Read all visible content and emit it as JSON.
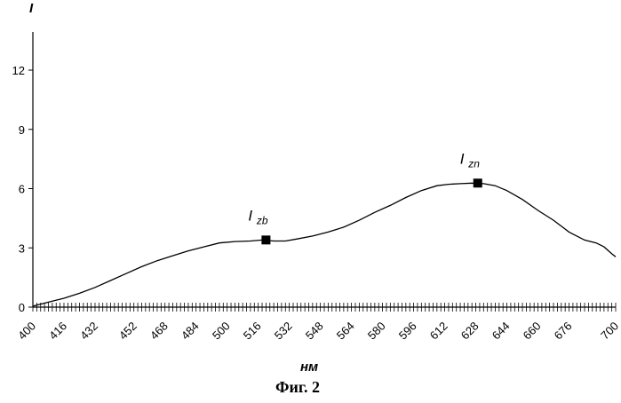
{
  "chart_data": {
    "type": "line",
    "ylabel": "I",
    "xlabel": "нм",
    "caption": "Фиг. 2",
    "ylim": [
      0,
      14
    ],
    "y_ticks": [
      0,
      3,
      6,
      9,
      12
    ],
    "xlim": [
      400,
      700
    ],
    "x_tick_step": 2,
    "x_tick_labels": [
      400,
      416,
      432,
      452,
      468,
      484,
      500,
      516,
      532,
      548,
      564,
      580,
      596,
      612,
      628,
      644,
      660,
      676,
      700
    ],
    "grid": false,
    "legend": "none",
    "series": [
      {
        "x": [
          400,
          408,
          416,
          424,
          432,
          440,
          448,
          456,
          464,
          472,
          480,
          488,
          496,
          504,
          512,
          518,
          524,
          530,
          536,
          544,
          552,
          560,
          568,
          576,
          584,
          592,
          600,
          608,
          614,
          620,
          626,
          632,
          638,
          644,
          652,
          660,
          668,
          676,
          684,
          690,
          694,
          698,
          700
        ],
        "y": [
          0.05,
          0.25,
          0.45,
          0.7,
          1.0,
          1.35,
          1.7,
          2.05,
          2.35,
          2.6,
          2.85,
          3.05,
          3.25,
          3.32,
          3.35,
          3.4,
          3.35,
          3.35,
          3.45,
          3.6,
          3.8,
          4.05,
          4.4,
          4.8,
          5.15,
          5.55,
          5.9,
          6.15,
          6.22,
          6.25,
          6.28,
          6.25,
          6.15,
          5.9,
          5.45,
          4.9,
          4.4,
          3.8,
          3.4,
          3.25,
          3.05,
          2.7,
          2.55
        ]
      }
    ],
    "markers": [
      {
        "label": "I",
        "sub": "zb",
        "x": 520,
        "y": 3.4
      },
      {
        "label": "I",
        "sub": "zn",
        "x": 629,
        "y": 6.28
      }
    ]
  }
}
